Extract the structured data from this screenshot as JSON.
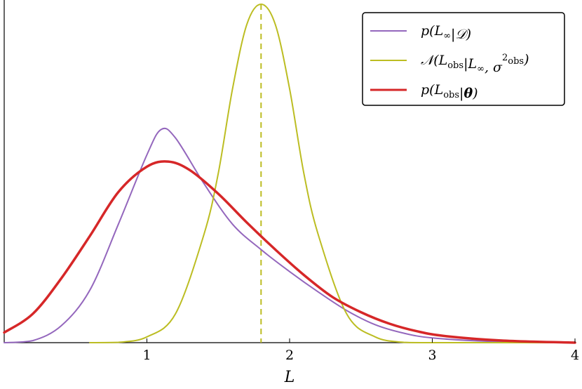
{
  "chart_data": {
    "type": "line",
    "xlabel": "L",
    "ylabel": "",
    "xlim": [
      0,
      4
    ],
    "ylim": [
      0,
      1.0
    ],
    "xticks": [
      "1",
      "2",
      "3",
      "4"
    ],
    "grid": false,
    "legend_position": "top-right",
    "reference_line": {
      "x": 1.8,
      "style": "dashed",
      "color": "#bcbd22"
    },
    "series": [
      {
        "name": "p(L∞|D)",
        "color": "#9467bd",
        "width": 2,
        "x": [
          0.0,
          0.2,
          0.4,
          0.6,
          0.8,
          1.0,
          1.1,
          1.2,
          1.4,
          1.6,
          1.8,
          2.0,
          2.2,
          2.4,
          2.6,
          2.8,
          3.0,
          3.4,
          4.0
        ],
        "y": [
          0.0,
          0.006,
          0.05,
          0.155,
          0.35,
          0.555,
          0.63,
          0.605,
          0.47,
          0.35,
          0.275,
          0.21,
          0.15,
          0.095,
          0.053,
          0.028,
          0.014,
          0.004,
          0.0
        ]
      },
      {
        "name": "N(Lobs|L∞, σ²obs)",
        "color": "#bcbd22",
        "width": 2,
        "x": [
          0.6,
          0.8,
          1.0,
          1.2,
          1.4,
          1.5,
          1.6,
          1.7,
          1.8,
          1.9,
          2.0,
          2.1,
          2.2,
          2.4,
          2.6,
          2.8,
          3.0,
          4.0
        ],
        "y": [
          0.0,
          0.001,
          0.017,
          0.085,
          0.32,
          0.5,
          0.75,
          0.94,
          1.0,
          0.94,
          0.75,
          0.5,
          0.32,
          0.085,
          0.017,
          0.001,
          0.0,
          0.0
        ]
      },
      {
        "name": "p(Lobs|θ)",
        "color": "#d62728",
        "width": 3.5,
        "x": [
          0.0,
          0.2,
          0.4,
          0.6,
          0.8,
          1.0,
          1.15,
          1.3,
          1.5,
          1.7,
          1.9,
          2.1,
          2.3,
          2.5,
          2.7,
          2.9,
          3.1,
          3.5,
          4.0
        ],
        "y": [
          0.03,
          0.085,
          0.19,
          0.315,
          0.445,
          0.52,
          0.535,
          0.51,
          0.44,
          0.355,
          0.275,
          0.2,
          0.135,
          0.09,
          0.056,
          0.033,
          0.019,
          0.006,
          0.0
        ]
      }
    ]
  },
  "legend": {
    "entries": [
      {
        "label": "p(L∞|𝒟)",
        "color": "#9467bd"
      },
      {
        "label": "𝒩(Lobs|L∞, σ²obs)",
        "color": "#bcbd22"
      },
      {
        "label": "p(Lobs|θ)",
        "color": "#d62728"
      }
    ]
  }
}
